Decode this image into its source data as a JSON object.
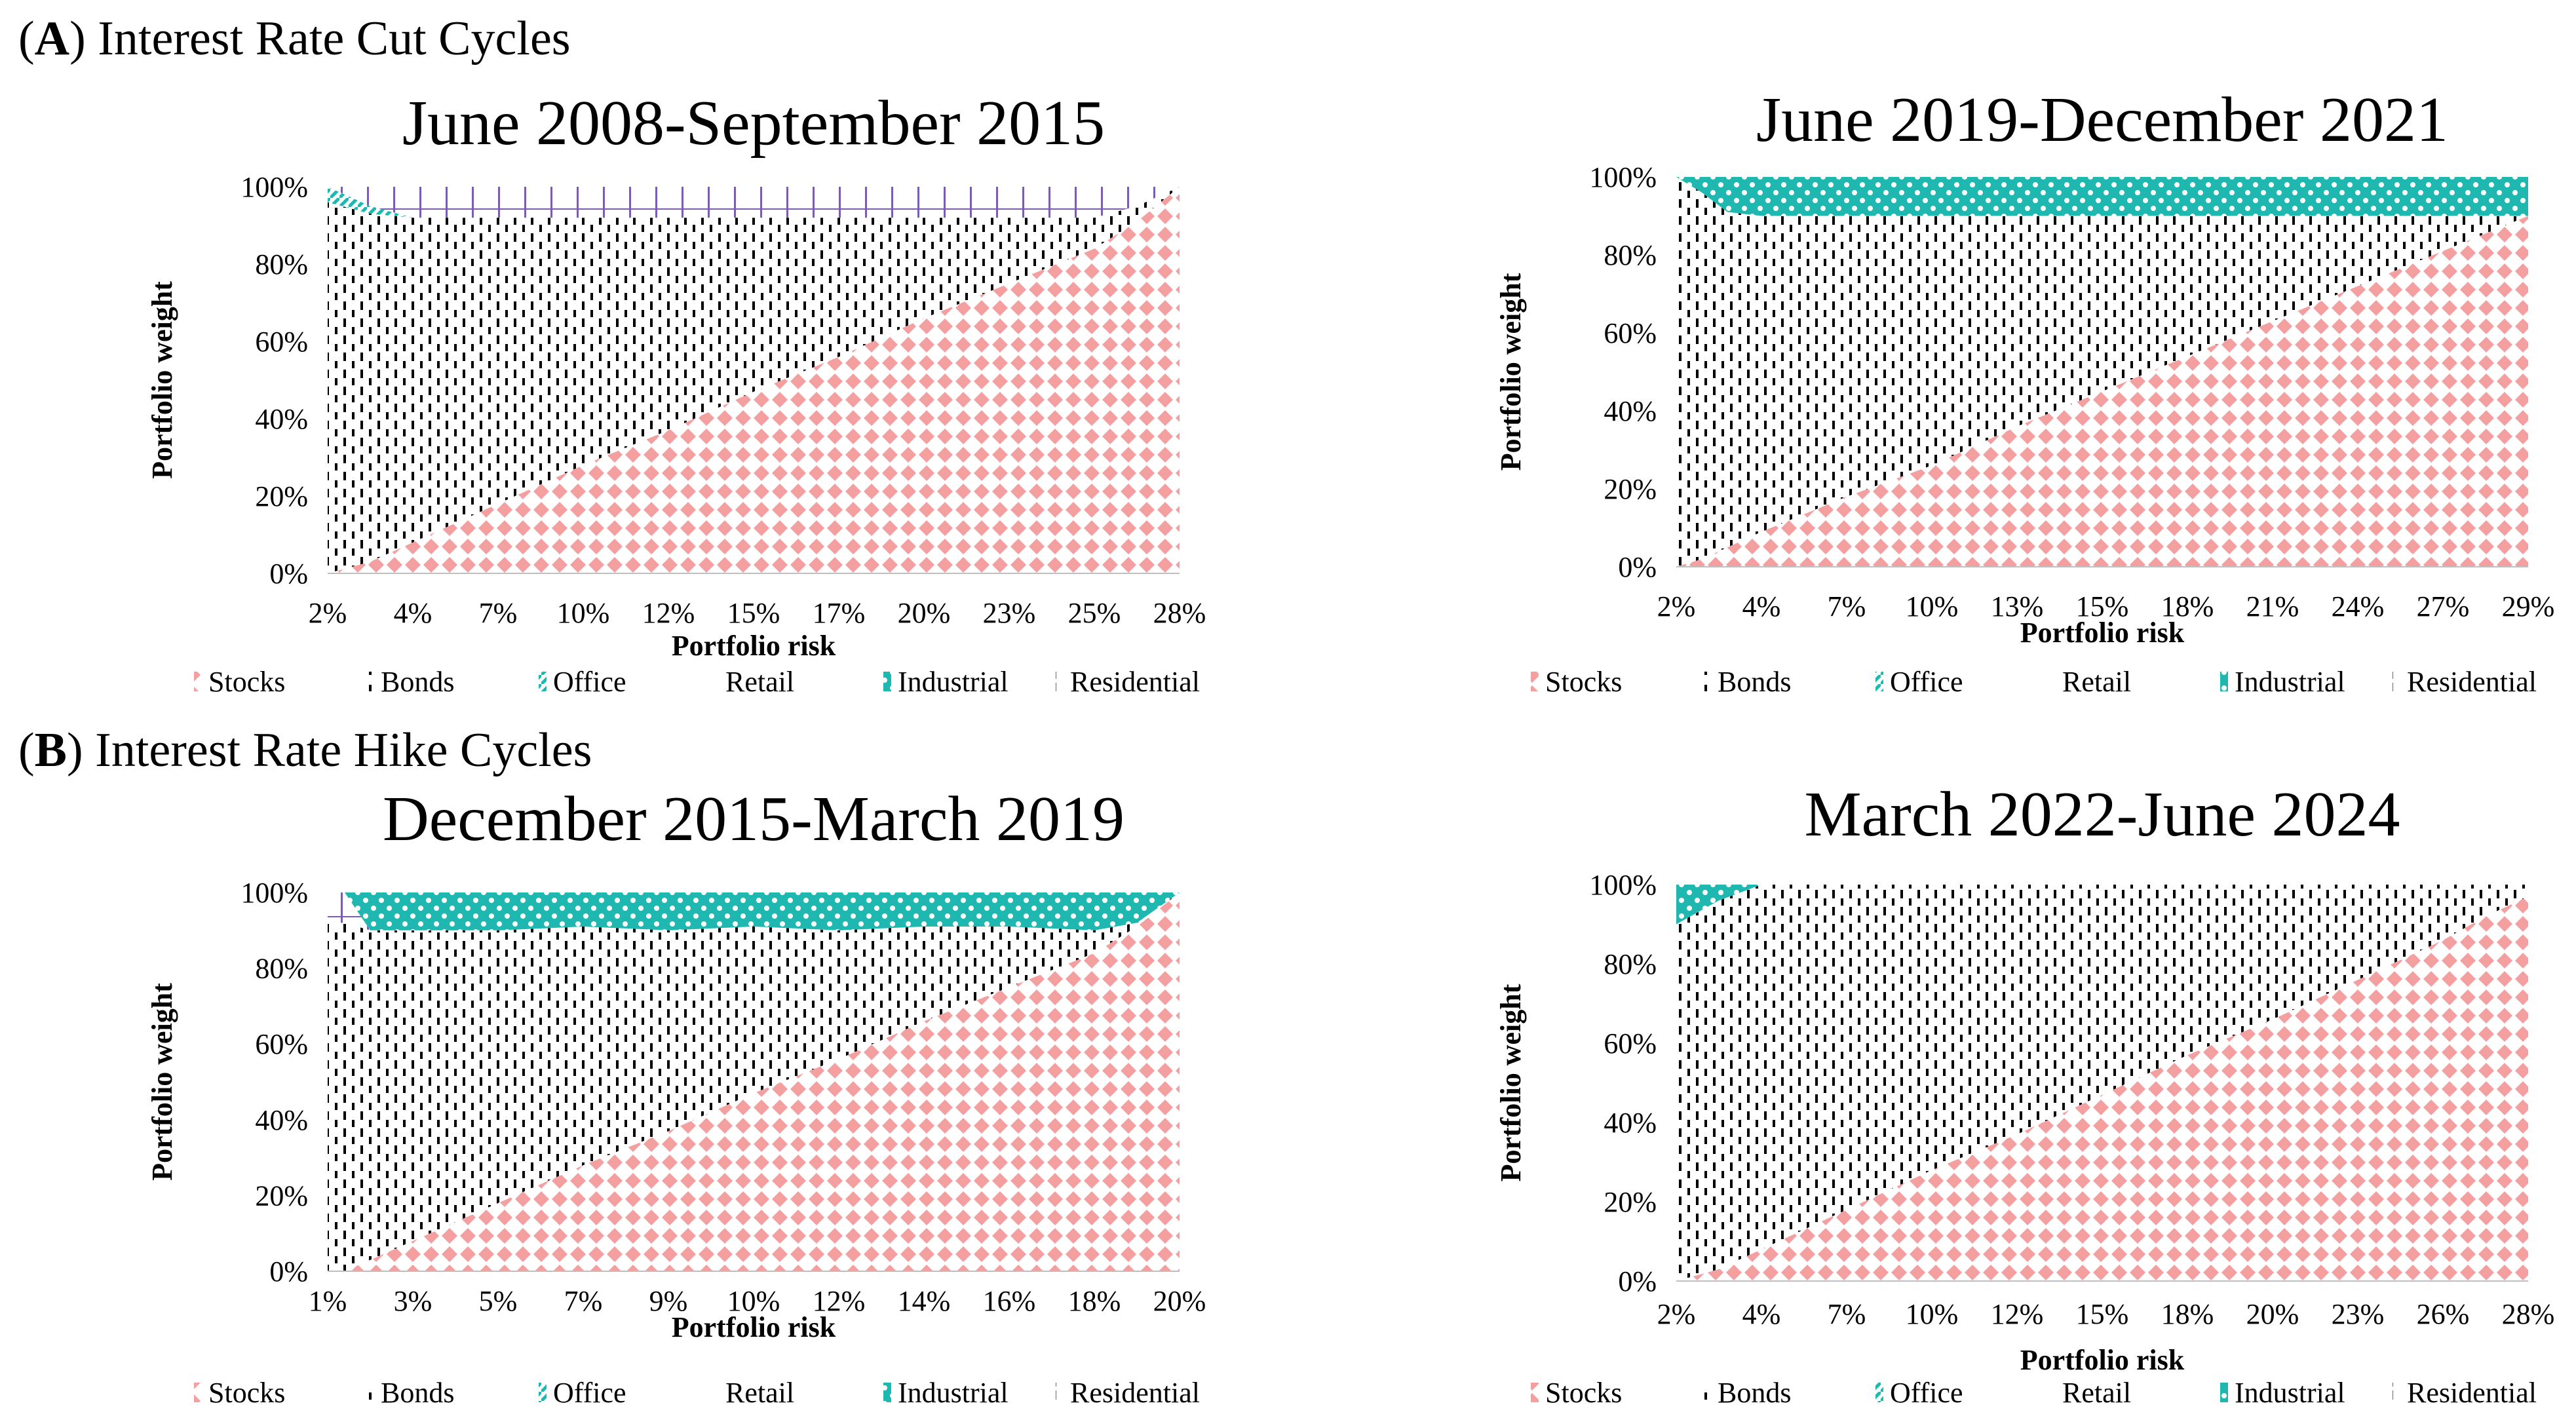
{
  "sections": {
    "a": {
      "letter": "A",
      "text": "Interest Rate Cut Cycles"
    },
    "b": {
      "letter": "B",
      "text": "Interest Rate Hike Cycles"
    }
  },
  "colors": {
    "stocks": "#f4a0a0",
    "bonds": "#000000",
    "office": "#1fb8b1",
    "retail": "#7a5cb0",
    "industrial": "#1fb8b1",
    "residential": "#e8323c"
  },
  "chart_data": [
    {
      "type": "area",
      "stacked": true,
      "title": "June 2008-September 2015",
      "xlabel": "Portfolio risk",
      "ylabel": "Portfolio weight",
      "ylim": [
        0,
        100
      ],
      "yticks": [
        "0%",
        "20%",
        "40%",
        "60%",
        "80%",
        "100%"
      ],
      "xticks": [
        "2%",
        "4%",
        "7%",
        "10%",
        "12%",
        "15%",
        "17%",
        "20%",
        "23%",
        "25%",
        "28%"
      ],
      "x": [
        0,
        0.05,
        0.1,
        0.15,
        0.2,
        0.3,
        0.4,
        0.5,
        0.6,
        0.7,
        0.8,
        0.9,
        0.95,
        1.0
      ],
      "series": [
        {
          "name": "Stocks",
          "values": [
            0,
            3,
            8,
            13,
            18,
            28,
            37,
            47,
            56,
            66,
            75,
            84,
            91,
            100
          ]
        },
        {
          "name": "Bonds",
          "values": [
            96,
            90,
            84,
            79,
            74,
            64,
            55,
            45,
            36,
            26,
            17,
            8,
            4,
            0
          ]
        },
        {
          "name": "Office",
          "values": [
            4,
            2,
            0,
            0,
            0,
            0,
            0,
            0,
            0,
            0,
            0,
            0,
            0,
            0
          ]
        },
        {
          "name": "Retail",
          "values": [
            0,
            5,
            8,
            8,
            8,
            8,
            8,
            8,
            8,
            8,
            8,
            8,
            5,
            0
          ]
        },
        {
          "name": "Industrial",
          "values": [
            0,
            0,
            0,
            0,
            0,
            0,
            0,
            0,
            0,
            0,
            0,
            0,
            0,
            0
          ]
        },
        {
          "name": "Residential",
          "values": [
            0,
            0,
            0,
            0,
            0,
            0,
            0,
            0,
            0,
            0,
            0,
            0,
            0,
            0
          ]
        }
      ],
      "legend": [
        "Stocks",
        "Bonds",
        "Office",
        "Retail",
        "Industrial",
        "Residential"
      ]
    },
    {
      "type": "area",
      "stacked": true,
      "title": "June 2019-December 2021",
      "xlabel": "Portfolio risk",
      "ylabel": "Portfolio weight",
      "ylim": [
        0,
        100
      ],
      "yticks": [
        "0%",
        "20%",
        "40%",
        "60%",
        "80%",
        "100%"
      ],
      "xticks": [
        "2%",
        "4%",
        "7%",
        "10%",
        "13%",
        "15%",
        "18%",
        "21%",
        "24%",
        "27%",
        "29%"
      ],
      "x": [
        0,
        0.03,
        0.06,
        0.1,
        0.2,
        0.3,
        0.4,
        0.5,
        0.6,
        0.7,
        0.8,
        0.9,
        1.0
      ],
      "series": [
        {
          "name": "Stocks",
          "values": [
            0,
            2,
            5,
            9,
            18,
            26,
            36,
            45,
            54,
            63,
            72,
            81,
            90
          ]
        },
        {
          "name": "Bonds",
          "values": [
            100,
            94,
            86,
            81,
            72,
            64,
            54,
            45,
            36,
            27,
            18,
            9,
            0
          ]
        },
        {
          "name": "Office",
          "values": [
            0,
            0,
            0,
            0,
            0,
            0,
            0,
            0,
            0,
            0,
            0,
            0,
            0
          ]
        },
        {
          "name": "Retail",
          "values": [
            0,
            0,
            0,
            0,
            0,
            0,
            0,
            0,
            0,
            0,
            0,
            0,
            0
          ]
        },
        {
          "name": "Industrial",
          "values": [
            0,
            4,
            9,
            10,
            10,
            10,
            10,
            10,
            10,
            10,
            10,
            10,
            10
          ]
        },
        {
          "name": "Residential",
          "values": [
            0,
            0,
            0,
            0,
            0,
            0,
            0,
            0,
            0,
            0,
            0,
            0,
            0
          ]
        }
      ],
      "legend": [
        "Stocks",
        "Bonds",
        "Office",
        "Retail",
        "Industrial",
        "Residential"
      ]
    },
    {
      "type": "area",
      "stacked": true,
      "title": "December 2015-March 2019",
      "xlabel": "Portfolio risk",
      "ylabel": "Portfolio weight",
      "ylim": [
        0,
        100
      ],
      "yticks": [
        "0%",
        "20%",
        "40%",
        "60%",
        "80%",
        "100%"
      ],
      "xticks": [
        "1%",
        "3%",
        "5%",
        "7%",
        "9%",
        "10%",
        "12%",
        "14%",
        "16%",
        "18%",
        "20%"
      ],
      "x": [
        0,
        0.02,
        0.05,
        0.1,
        0.2,
        0.3,
        0.4,
        0.5,
        0.6,
        0.7,
        0.8,
        0.9,
        0.95,
        1.0
      ],
      "series": [
        {
          "name": "Stocks",
          "values": [
            0,
            0,
            3,
            8,
            18,
            28,
            37,
            47,
            56,
            66,
            75,
            84,
            91,
            100
          ]
        },
        {
          "name": "Bonds",
          "values": [
            92,
            92,
            87,
            82,
            72,
            63,
            53,
            44,
            34,
            25,
            16,
            6,
            1,
            0
          ]
        },
        {
          "name": "Office",
          "values": [
            0,
            0,
            0,
            0,
            0,
            0,
            0,
            0,
            0,
            0,
            0,
            0,
            0,
            0
          ]
        },
        {
          "name": "Retail",
          "values": [
            8,
            8,
            0,
            0,
            0,
            0,
            0,
            0,
            0,
            0,
            0,
            0,
            0,
            0
          ]
        },
        {
          "name": "Industrial",
          "values": [
            0,
            0,
            10,
            10,
            10,
            9,
            10,
            9,
            10,
            9,
            9,
            10,
            8,
            0
          ]
        },
        {
          "name": "Residential",
          "values": [
            0,
            0,
            0,
            0,
            0,
            0,
            0,
            0,
            0,
            0,
            0,
            0,
            0,
            0
          ]
        }
      ],
      "legend": [
        "Stocks",
        "Bonds",
        "Office",
        "Retail",
        "Industrial",
        "Residential"
      ]
    },
    {
      "type": "area",
      "stacked": true,
      "title": "March 2022-June 2024",
      "xlabel": "Portfolio risk",
      "ylabel": "Portfolio weight",
      "ylim": [
        0,
        100
      ],
      "yticks": [
        "0%",
        "20%",
        "40%",
        "60%",
        "80%",
        "100%"
      ],
      "xticks": [
        "2%",
        "4%",
        "7%",
        "10%",
        "12%",
        "15%",
        "18%",
        "20%",
        "23%",
        "26%",
        "28%"
      ],
      "x": [
        0,
        0.05,
        0.1,
        0.2,
        0.3,
        0.4,
        0.5,
        0.6,
        0.7,
        0.8,
        0.9,
        0.95,
        1.0
      ],
      "series": [
        {
          "name": "Stocks",
          "values": [
            0,
            3,
            8,
            18,
            28,
            37,
            47,
            57,
            66,
            76,
            86,
            92,
            97
          ]
        },
        {
          "name": "Bonds",
          "values": [
            90,
            93,
            92,
            82,
            72,
            63,
            53,
            43,
            34,
            24,
            14,
            8,
            3
          ]
        },
        {
          "name": "Office",
          "values": [
            0,
            0,
            0,
            0,
            0,
            0,
            0,
            0,
            0,
            0,
            0,
            0,
            0
          ]
        },
        {
          "name": "Retail",
          "values": [
            0,
            0,
            0,
            0,
            0,
            0,
            0,
            0,
            0,
            0,
            0,
            0,
            0
          ]
        },
        {
          "name": "Industrial",
          "values": [
            10,
            4,
            0,
            0,
            0,
            0,
            0,
            0,
            0,
            0,
            0,
            0,
            0
          ]
        },
        {
          "name": "Residential",
          "values": [
            0,
            0,
            0,
            0,
            0,
            0,
            0,
            0,
            0,
            0,
            0,
            0,
            0
          ]
        }
      ],
      "legend": [
        "Stocks",
        "Bonds",
        "Office",
        "Retail",
        "Industrial",
        "Residential"
      ]
    }
  ]
}
